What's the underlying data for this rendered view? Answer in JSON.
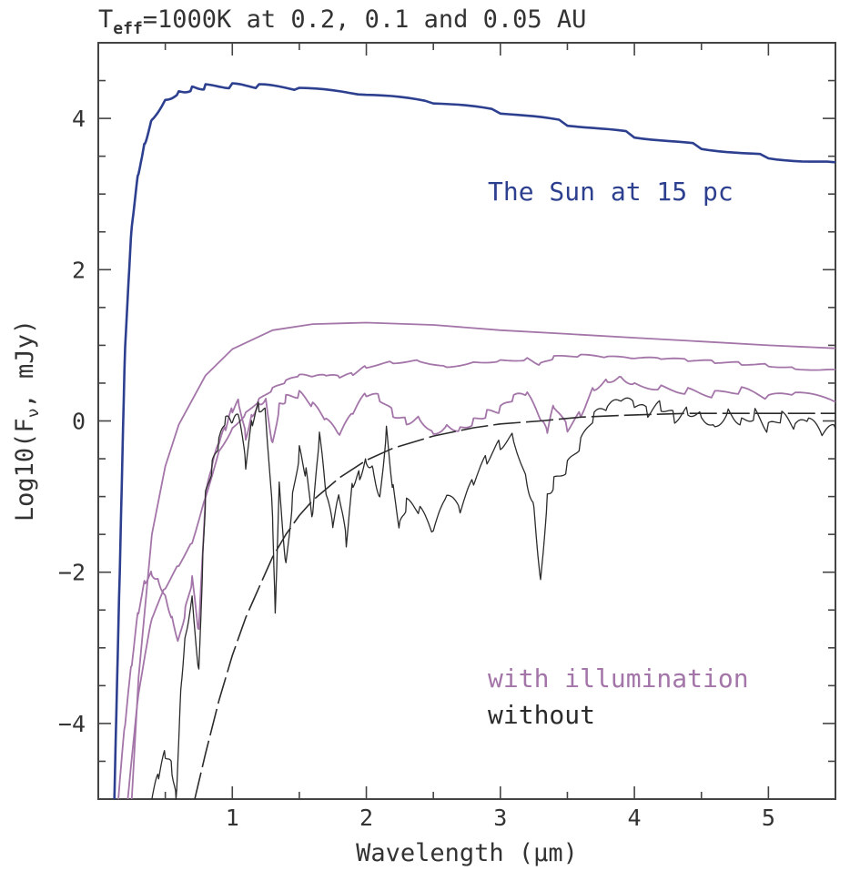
{
  "chart_data": {
    "type": "line",
    "title_main": "T",
    "title_sub": "eff",
    "title_rest": "=1000K at 0.2, 0.1 and 0.05 AU",
    "xlabel": "Wavelength (μm)",
    "ylabel": "Log10(F",
    "ylabel_sub": "ν",
    "ylabel_rest": ", mJy)",
    "xlim": [
      0,
      5.5
    ],
    "ylim": [
      -5,
      5
    ],
    "xticks": [
      "1",
      "2",
      "3",
      "4",
      "5"
    ],
    "yticks": [
      "−4",
      "−2",
      "0",
      "2",
      "4"
    ],
    "annotations": {
      "sun": "The Sun at 15 pc",
      "with": "with illumination",
      "without": "without"
    },
    "colors": {
      "sun": "#2d3f8f",
      "with": "#a375a8",
      "without": "#2b2b2b",
      "axis": "#444444"
    },
    "series": [
      {
        "id": "sun",
        "x": [
          0.12,
          0.16,
          0.2,
          0.25,
          0.3,
          0.35,
          0.4,
          0.5,
          0.6,
          0.7,
          0.8,
          1.0,
          1.2,
          1.5,
          2.0,
          2.5,
          3.0,
          3.5,
          4.0,
          4.5,
          5.0,
          5.5
        ],
        "y": [
          -5.0,
          -2.0,
          1.0,
          2.6,
          3.3,
          3.7,
          4.0,
          4.25,
          4.35,
          4.4,
          4.42,
          4.43,
          4.42,
          4.38,
          4.3,
          4.2,
          4.08,
          3.93,
          3.78,
          3.63,
          3.5,
          3.42
        ]
      },
      {
        "id": "illum-0.05",
        "x": [
          0.25,
          0.3,
          0.4,
          0.5,
          0.6,
          0.8,
          1.0,
          1.3,
          1.6,
          2.0,
          2.5,
          3.0,
          3.5,
          4.0,
          4.5,
          5.0,
          5.5
        ],
        "y": [
          -5.0,
          -3.4,
          -1.5,
          -0.6,
          -0.05,
          0.6,
          0.95,
          1.2,
          1.28,
          1.3,
          1.27,
          1.2,
          1.15,
          1.1,
          1.05,
          1.0,
          0.96
        ]
      },
      {
        "id": "illum-0.1",
        "x": [
          0.22,
          0.3,
          0.4,
          0.5,
          0.6,
          0.7,
          0.8,
          0.9,
          1.0,
          1.1,
          1.2,
          1.3,
          1.4,
          1.5,
          1.6,
          1.7,
          1.8,
          1.9,
          2.0,
          2.2,
          2.4,
          2.6,
          2.8,
          3.0,
          3.2,
          3.3,
          3.4,
          3.6,
          3.8,
          4.0,
          4.2,
          4.4,
          4.6,
          4.8,
          5.0,
          5.2,
          5.5
        ],
        "y": [
          -5.0,
          -3.6,
          -2.6,
          -2.2,
          -1.9,
          -1.6,
          -1.0,
          -0.4,
          -0.1,
          0.1,
          0.28,
          0.42,
          0.52,
          0.6,
          0.58,
          0.6,
          0.58,
          0.62,
          0.72,
          0.78,
          0.8,
          0.72,
          0.78,
          0.8,
          0.82,
          0.75,
          0.84,
          0.86,
          0.84,
          0.82,
          0.82,
          0.8,
          0.78,
          0.76,
          0.74,
          0.7,
          0.68
        ]
      },
      {
        "id": "illum-0.2",
        "x": [
          0.15,
          0.2,
          0.25,
          0.3,
          0.35,
          0.4,
          0.45,
          0.5,
          0.55,
          0.6,
          0.65,
          0.7,
          0.75,
          0.8,
          0.85,
          0.9,
          0.95,
          1.0,
          1.05,
          1.1,
          1.15,
          1.2,
          1.25,
          1.3,
          1.35,
          1.4,
          1.5,
          1.6,
          1.7,
          1.8,
          1.9,
          2.0,
          2.1,
          2.2,
          2.3,
          2.4,
          2.5,
          2.6,
          2.7,
          2.8,
          2.9,
          3.0,
          3.1,
          3.2,
          3.3,
          3.35,
          3.4,
          3.5,
          3.6,
          3.7,
          3.8,
          3.9,
          4.0,
          4.2,
          4.4,
          4.6,
          4.8,
          5.0,
          5.2,
          5.5
        ],
        "y": [
          -5.0,
          -4.0,
          -3.2,
          -2.5,
          -2.1,
          -2.0,
          -2.1,
          -2.3,
          -2.6,
          -2.9,
          -2.5,
          -2.1,
          -2.8,
          -1.0,
          -0.6,
          -0.3,
          -0.1,
          0.15,
          0.25,
          -0.2,
          0.1,
          0.25,
          0.3,
          -0.3,
          0.2,
          0.3,
          0.35,
          0.2,
          0.0,
          -0.2,
          0.1,
          0.35,
          0.3,
          0.1,
          0.0,
          0.05,
          -0.15,
          -0.05,
          -0.1,
          0.0,
          0.1,
          0.15,
          0.3,
          0.35,
          0.0,
          -0.15,
          0.2,
          -0.1,
          0.1,
          0.45,
          0.55,
          0.6,
          0.5,
          0.45,
          0.4,
          0.35,
          0.4,
          0.3,
          0.35,
          0.25
        ]
      },
      {
        "id": "without",
        "x": [
          0.4,
          0.45,
          0.5,
          0.55,
          0.58,
          0.62,
          0.65,
          0.7,
          0.75,
          0.78,
          0.8,
          0.85,
          0.9,
          0.95,
          1.0,
          1.05,
          1.1,
          1.15,
          1.2,
          1.25,
          1.3,
          1.32,
          1.35,
          1.4,
          1.45,
          1.5,
          1.55,
          1.6,
          1.65,
          1.7,
          1.75,
          1.8,
          1.85,
          1.9,
          1.95,
          2.0,
          2.05,
          2.1,
          2.15,
          2.2,
          2.25,
          2.3,
          2.4,
          2.5,
          2.6,
          2.7,
          2.8,
          2.9,
          3.0,
          3.1,
          3.2,
          3.25,
          3.3,
          3.35,
          3.4,
          3.5,
          3.6,
          3.7,
          3.8,
          3.9,
          4.0,
          4.1,
          4.2,
          4.3,
          4.4,
          4.5,
          4.6,
          4.7,
          4.8,
          4.9,
          5.0,
          5.1,
          5.2,
          5.3,
          5.4,
          5.5
        ],
        "y": [
          -5.0,
          -4.7,
          -4.4,
          -4.6,
          -5.0,
          -3.4,
          -2.8,
          -2.3,
          -3.3,
          -1.8,
          -1.0,
          -0.6,
          -0.3,
          0.0,
          -0.05,
          0.05,
          -0.6,
          0.0,
          0.2,
          0.1,
          -1.2,
          -2.5,
          -0.8,
          -1.9,
          -1.0,
          -0.4,
          -0.7,
          -1.3,
          -0.2,
          -1.0,
          -1.4,
          -1.0,
          -1.6,
          -0.8,
          -0.7,
          -0.5,
          -0.6,
          -1.0,
          -0.1,
          -0.9,
          -1.4,
          -1.1,
          -1.2,
          -1.5,
          -1.0,
          -1.2,
          -0.8,
          -0.5,
          -0.3,
          -0.2,
          -0.8,
          -1.1,
          -2.1,
          -1.0,
          -0.8,
          -0.6,
          -0.3,
          0.05,
          0.15,
          0.25,
          0.2,
          0.1,
          0.2,
          0.05,
          0.15,
          0.1,
          -0.05,
          0.15,
          0.0,
          0.1,
          -0.1,
          0.05,
          -0.1,
          0.0,
          -0.2,
          -0.1
        ]
      },
      {
        "id": "blackbody",
        "x": [
          0.72,
          0.8,
          0.9,
          1.0,
          1.1,
          1.2,
          1.3,
          1.4,
          1.5,
          1.6,
          1.8,
          2.0,
          2.2,
          2.5,
          2.8,
          3.0,
          3.3,
          3.6,
          4.0,
          4.4,
          4.8,
          5.2,
          5.5
        ],
        "y": [
          -5.0,
          -4.4,
          -3.7,
          -3.1,
          -2.6,
          -2.2,
          -1.8,
          -1.5,
          -1.25,
          -1.05,
          -0.75,
          -0.52,
          -0.36,
          -0.2,
          -0.09,
          -0.04,
          0.0,
          0.05,
          0.08,
          0.1,
          0.1,
          0.1,
          0.1
        ]
      }
    ]
  }
}
